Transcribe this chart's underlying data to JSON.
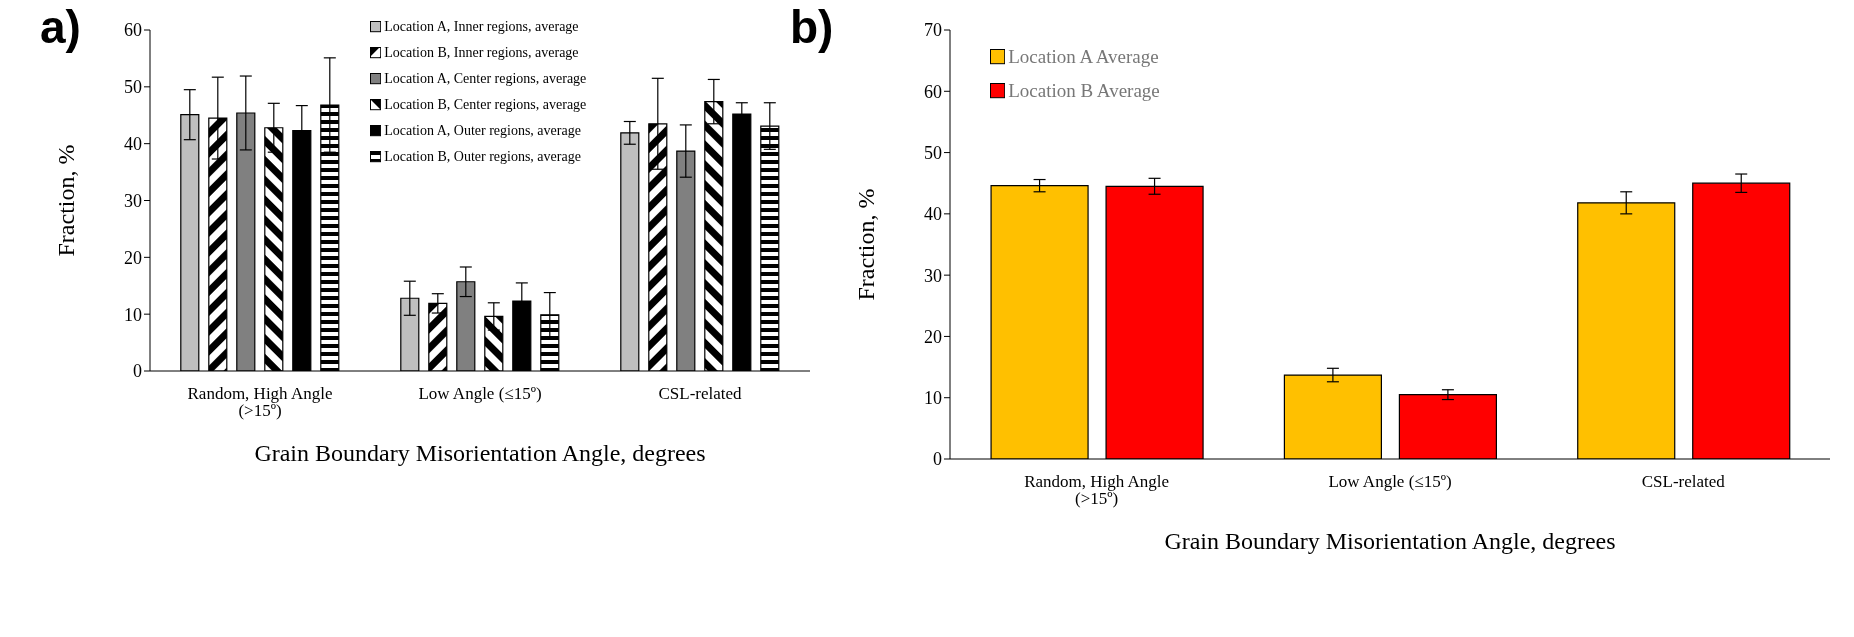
{
  "chart_data": [
    {
      "type": "bar",
      "title": "a)",
      "xlabel": "Grain Boundary Misorientation Angle, degrees",
      "ylabel": "Fraction, %",
      "categories": [
        "Random, High Angle (>15º)",
        "Low Angle (≤15º)",
        "CSL-related"
      ],
      "series": [
        {
          "name": "Location A, Inner regions, average",
          "color": "#bfbfbf",
          "values": [
            45.1,
            12.8,
            41.9
          ],
          "errors": [
            4.4,
            3.0,
            2.0
          ]
        },
        {
          "name": "Location B, Inner regions, average",
          "color": "#000000",
          "values": [
            44.5,
            11.9,
            43.5
          ],
          "errors": [
            7.2,
            1.7,
            8.0
          ]
        },
        {
          "name": "Location A, Center regions, average",
          "color": "#808080",
          "values": [
            45.4,
            15.7,
            38.7
          ],
          "errors": [
            6.5,
            2.6,
            4.6
          ]
        },
        {
          "name": "Location B, Center regions, average",
          "color": "#000000",
          "values": [
            42.8,
            9.6,
            47.4
          ],
          "errors": [
            4.3,
            2.4,
            3.9
          ]
        },
        {
          "name": "Location A, Outer regions, average",
          "color": "#000000",
          "values": [
            42.3,
            12.3,
            45.2
          ],
          "errors": [
            4.4,
            3.2,
            2.0
          ]
        },
        {
          "name": "Location B, Outer regions, average",
          "color": "#000000",
          "values": [
            46.8,
            9.9,
            43.1
          ],
          "errors": [
            8.3,
            3.9,
            4.1
          ]
        }
      ],
      "ylim": [
        0,
        60
      ],
      "yticks": [
        0,
        10,
        20,
        30,
        40,
        50,
        60
      ],
      "grid": false,
      "legend": "top right"
    },
    {
      "type": "bar",
      "title": "b)",
      "xlabel": "Grain Boundary Misorientation Angle, degrees",
      "ylabel": "Fraction, %",
      "categories": [
        "Random, High Angle (>15º)",
        "Low Angle (≤15º)",
        "CSL-related"
      ],
      "series": [
        {
          "name": "Location A Average",
          "color": "#ffc000",
          "values": [
            44.6,
            13.7,
            41.8
          ],
          "errors": [
            1.0,
            1.1,
            1.8
          ]
        },
        {
          "name": "Location B Average",
          "color": "#ff0000",
          "values": [
            44.5,
            10.5,
            45.0
          ],
          "errors": [
            1.3,
            0.8,
            1.5
          ]
        }
      ],
      "ylim": [
        0,
        70
      ],
      "yticks": [
        0,
        10,
        20,
        30,
        40,
        50,
        60,
        70
      ],
      "grid": false,
      "legend": "top left"
    }
  ]
}
